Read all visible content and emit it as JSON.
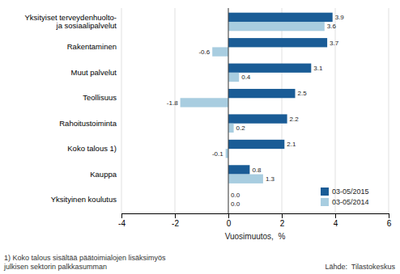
{
  "chart_data": {
    "type": "bar",
    "orientation": "horizontal",
    "categories": [
      "Yksityinen koulutus",
      "Kauppa",
      "Koko talous 1)",
      "Rahoitustoiminta",
      "Teollisuus",
      "Muut palvelut",
      "Rakentaminen",
      "Yksityiset terveydenhuolto- ja sosiaalipalvelut"
    ],
    "series": [
      {
        "name": "03-05/2015",
        "color": "#1a5c96",
        "values": [
          0.0,
          0.8,
          2.1,
          2.2,
          2.5,
          3.1,
          3.7,
          3.9
        ],
        "value_labels": [
          "0.0",
          "0.8",
          "2.1",
          "2.2",
          "2.5",
          "3.1",
          "3.7",
          "3.9"
        ]
      },
      {
        "name": "03-05/2014",
        "color": "#a8cde0",
        "values": [
          0.0,
          1.3,
          -0.1,
          0.2,
          -1.8,
          0.4,
          -0.6,
          3.6
        ],
        "value_labels": [
          "0.0",
          "1.3",
          "-0.1",
          "0.2",
          "-1.8",
          "0.4",
          "-0.6",
          "3.6"
        ]
      }
    ],
    "xlabel": "Vuosimuutos,  %",
    "xlim": [
      -4,
      6
    ],
    "xticks": [
      -4,
      -2,
      0,
      2,
      4,
      6
    ],
    "grid": true,
    "data_labels": true,
    "legend": "lower right",
    "annotations": [
      "1) Koko talous sisältää päätoimialojen lisäksimyös\njulkisen sektorin palkkasumman",
      "Lähde:  Tilastokeskus"
    ]
  }
}
